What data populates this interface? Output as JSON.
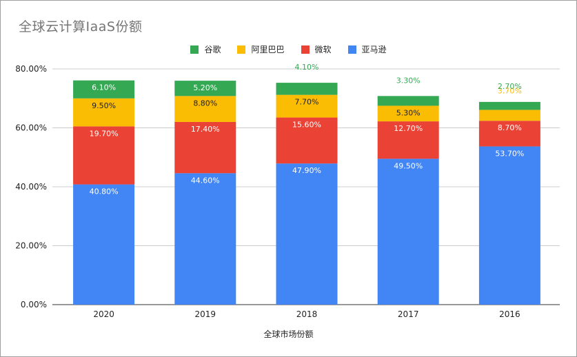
{
  "chart_data": {
    "type": "bar",
    "stacked": true,
    "title": "全球云计算IaaS份额",
    "xlabel": "全球市场份额",
    "ylabel": "",
    "categories": [
      "2020",
      "2019",
      "2018",
      "2017",
      "2016"
    ],
    "ylim": [
      0,
      80
    ],
    "yticks": [
      "0.00%",
      "20.00%",
      "40.00%",
      "60.00%",
      "80.00%"
    ],
    "legend_position": "top",
    "grid": true,
    "series": [
      {
        "name": "亚马逊",
        "color": "#4285f4",
        "values": [
          40.8,
          44.6,
          47.9,
          49.5,
          53.7
        ],
        "labels": [
          "40.80%",
          "44.60%",
          "47.90%",
          "49.50%",
          "53.70%"
        ]
      },
      {
        "name": "微软",
        "color": "#ea4335",
        "values": [
          19.7,
          17.4,
          15.6,
          12.7,
          8.7
        ],
        "labels": [
          "19.70%",
          "17.40%",
          "15.60%",
          "12.70%",
          "8.70%"
        ]
      },
      {
        "name": "阿里巴巴",
        "color": "#fbbc04",
        "values": [
          9.5,
          8.8,
          7.7,
          5.3,
          3.7
        ],
        "labels": [
          "9.50%",
          "8.80%",
          "7.70%",
          "5.30%",
          "3.70%"
        ]
      },
      {
        "name": "谷歌",
        "color": "#34a853",
        "values": [
          6.1,
          5.2,
          4.1,
          3.3,
          2.7
        ],
        "labels": [
          "6.10%",
          "5.20%",
          "4.10%",
          "3.30%",
          "2.70%"
        ]
      }
    ],
    "legend_order": [
      "谷歌",
      "阿里巴巴",
      "微软",
      "亚马逊"
    ]
  }
}
